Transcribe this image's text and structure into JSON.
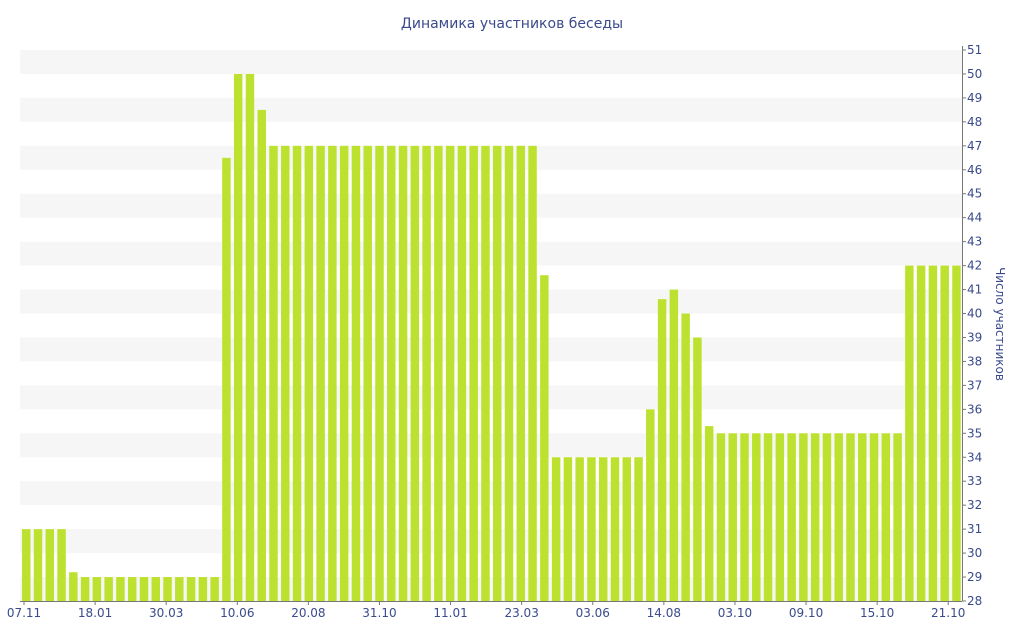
{
  "chart_data": {
    "type": "bar",
    "title": "Динамика участников беседы",
    "ylabel": "Число участников",
    "xlabel": "",
    "ylim": [
      28,
      51
    ],
    "y_axis_side": "right",
    "grid": "alternating horizontal bands",
    "legend": "none",
    "bar_color": "#bde12f",
    "x_tick_labels": [
      "07.11",
      "18.01",
      "30.03",
      "10.06",
      "20.08",
      "31.10",
      "11.01",
      "23.03",
      "03.06",
      "14.08",
      "03.10",
      "09.10",
      "15.10",
      "21.10"
    ],
    "values": [
      31,
      31,
      31,
      31,
      29.2,
      29,
      29,
      29,
      29,
      29,
      29,
      29,
      29,
      29,
      29,
      29,
      29,
      46.5,
      50,
      50,
      48.5,
      47,
      47,
      47,
      47,
      47,
      47,
      47,
      47,
      47,
      47,
      47,
      47,
      47,
      47,
      47,
      47,
      47,
      47,
      47,
      47,
      47,
      47,
      47,
      41.6,
      34,
      34,
      34,
      34,
      34,
      34,
      34,
      34,
      36,
      40.6,
      41,
      40,
      39,
      35.3,
      35,
      35,
      35,
      35,
      35,
      35,
      35,
      35,
      35,
      35,
      35,
      35,
      35,
      35,
      35,
      35,
      42,
      42,
      42,
      42,
      42
    ]
  }
}
